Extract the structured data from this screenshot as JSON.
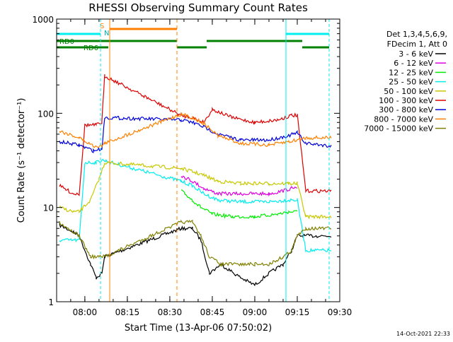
{
  "chart_data": {
    "type": "line",
    "title": "RHESSI Observing Summary Count Rates",
    "xlabel": "Start Time (13-Apr-06 07:50:02)",
    "ylabel": "Count Rate (s⁻¹ detector⁻¹)",
    "yscale": "log",
    "ylim": [
      1,
      1000
    ],
    "xlim": [
      "07:50:02",
      "09:30"
    ],
    "x_tick_labels": [
      "08:00",
      "08:15",
      "08:30",
      "08:45",
      "09:00",
      "09:15",
      "09:30"
    ],
    "y_tick_labels": [
      "1",
      "10",
      "100",
      "1000"
    ],
    "legend_header": [
      "Det 1,3,4,5,6,9,",
      "FDecim 1, Att 0"
    ],
    "legend_position": "right",
    "grid": false,
    "timestamp": "14-Oct-2021 22:33",
    "flag_labels": {
      "rd0": "RD0",
      "rd6": "RD6",
      "s": "S",
      "n": "N"
    },
    "series": [
      {
        "name": "3 - 6 keV",
        "color": "#000000",
        "x": [
          "07:51",
          "07:56",
          "07:58",
          "08:02",
          "08:04",
          "08:06",
          "08:07",
          "08:34",
          "08:38",
          "08:41",
          "08:44",
          "08:48",
          "08:55",
          "09:00",
          "09:05",
          "09:10",
          "09:13",
          "09:15",
          "09:17",
          "09:22",
          "09:27"
        ],
        "values": [
          6.5,
          5.5,
          5,
          2.5,
          1.8,
          2,
          3,
          6,
          6,
          4.5,
          2,
          2.5,
          1.8,
          1.5,
          2,
          2.5,
          3.5,
          5,
          5,
          5,
          5
        ]
      },
      {
        "name": "6 - 12 keV",
        "color": "#e000e0",
        "x": [
          "08:34",
          "08:38",
          "08:42",
          "08:47",
          "08:55",
          "09:05",
          "09:10",
          "09:13",
          "09:15"
        ],
        "values": [
          22,
          19,
          16,
          14,
          14,
          14,
          15,
          16,
          16
        ]
      },
      {
        "name": "12 - 25 keV",
        "color": "#00ee00",
        "x": [
          "08:34",
          "08:38",
          "08:41",
          "08:45",
          "08:52",
          "09:00",
          "09:08",
          "09:12",
          "09:15"
        ],
        "values": [
          15,
          12,
          10,
          8.5,
          8,
          8,
          8.5,
          9,
          9
        ]
      },
      {
        "name": "25 - 50 keV",
        "color": "#00eeee",
        "x": [
          "07:51",
          "07:58",
          "08:00",
          "08:04",
          "08:06",
          "08:34",
          "08:38",
          "08:42",
          "08:47",
          "08:55",
          "09:05",
          "09:12",
          "09:15",
          "09:18",
          "09:27"
        ],
        "values": [
          4.5,
          4.5,
          30,
          30,
          32,
          19,
          17,
          14,
          12,
          11.5,
          11.5,
          12,
          12,
          3.5,
          3.5
        ]
      },
      {
        "name": "50 - 100 keV",
        "color": "#c8c800",
        "x": [
          "07:51",
          "07:56",
          "07:58",
          "08:02",
          "08:05",
          "08:07",
          "08:34",
          "08:38",
          "08:42",
          "08:47",
          "08:55",
          "09:05",
          "09:12",
          "09:15",
          "09:18",
          "09:27"
        ],
        "values": [
          10,
          9,
          9,
          12,
          20,
          30,
          26,
          24,
          22,
          19,
          18,
          18,
          18,
          18,
          8,
          8
        ]
      },
      {
        "name": "100 - 300 keV",
        "color": "#dd0000",
        "x": [
          "07:51",
          "07:56",
          "07:58",
          "08:00",
          "08:04",
          "08:06",
          "08:07",
          "08:34",
          "08:38",
          "08:42",
          "08:45",
          "08:52",
          "09:00",
          "09:08",
          "09:13",
          "09:15",
          "09:18",
          "09:27"
        ],
        "values": [
          17,
          14,
          14,
          75,
          75,
          80,
          250,
          95,
          90,
          80,
          110,
          90,
          80,
          85,
          95,
          95,
          15,
          15
        ]
      },
      {
        "name": "300 - 800 keV",
        "color": "#0000dd",
        "x": [
          "07:51",
          "07:58",
          "08:03",
          "08:06",
          "08:07",
          "08:34",
          "08:38",
          "08:42",
          "08:47",
          "08:55",
          "09:05",
          "09:12",
          "09:15",
          "09:18",
          "09:27"
        ],
        "values": [
          50,
          46,
          40,
          42,
          90,
          85,
          80,
          72,
          60,
          52,
          52,
          58,
          62,
          48,
          45
        ]
      },
      {
        "name": "800 - 7000 keV",
        "color": "#ff8000",
        "x": [
          "07:51",
          "07:58",
          "08:03",
          "08:06",
          "08:07",
          "08:34",
          "08:38",
          "08:42",
          "08:47",
          "08:55",
          "09:05",
          "09:12",
          "09:15",
          "09:18",
          "09:27"
        ],
        "values": [
          65,
          55,
          45,
          45,
          48,
          98,
          90,
          78,
          58,
          48,
          46,
          50,
          52,
          55,
          55
        ]
      },
      {
        "name": "7000 - 15000 keV",
        "color": "#808000",
        "x": [
          "07:51",
          "07:56",
          "07:58",
          "08:02",
          "08:05",
          "08:07",
          "08:34",
          "08:38",
          "08:41",
          "08:44",
          "08:48",
          "08:55",
          "09:00",
          "09:05",
          "09:10",
          "09:13",
          "09:15",
          "09:18",
          "09:27"
        ],
        "values": [
          7,
          5.5,
          5,
          3,
          3,
          3,
          7,
          7,
          5,
          3,
          2.5,
          2.5,
          2.5,
          2.5,
          3,
          3.5,
          5,
          6,
          6
        ]
      }
    ]
  }
}
